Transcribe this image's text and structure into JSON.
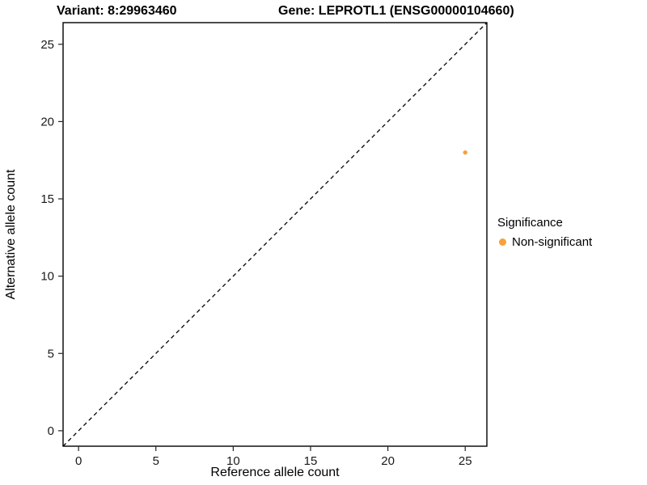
{
  "titles": {
    "variant": "Variant: 8:29963460",
    "gene": "Gene: LEPROTL1 (ENSG00000104660)"
  },
  "legend": {
    "title": "Significance",
    "items": [
      {
        "label": "Non-significant",
        "color": "#F7A13C"
      }
    ]
  },
  "chart_data": {
    "type": "scatter",
    "title": "Variant: 8:29963460 — Gene: LEPROTL1 (ENSG00000104660)",
    "xlabel": "Reference allele count",
    "ylabel": "Alternative allele count",
    "xlim": [
      -1.0,
      26.4
    ],
    "ylim": [
      -1.0,
      26.4
    ],
    "x_ticks": [
      0,
      5,
      10,
      15,
      20,
      25
    ],
    "y_ticks": [
      0,
      5,
      10,
      15,
      20,
      25
    ],
    "grid": false,
    "legend_position": "right",
    "series": [
      {
        "name": "Non-significant",
        "color": "#F7A13C",
        "points": [
          {
            "x": 25,
            "y": 18
          }
        ]
      }
    ],
    "reference_line": {
      "type": "identity",
      "equation": "y = x",
      "style": "dashed",
      "color": "#000000"
    }
  }
}
